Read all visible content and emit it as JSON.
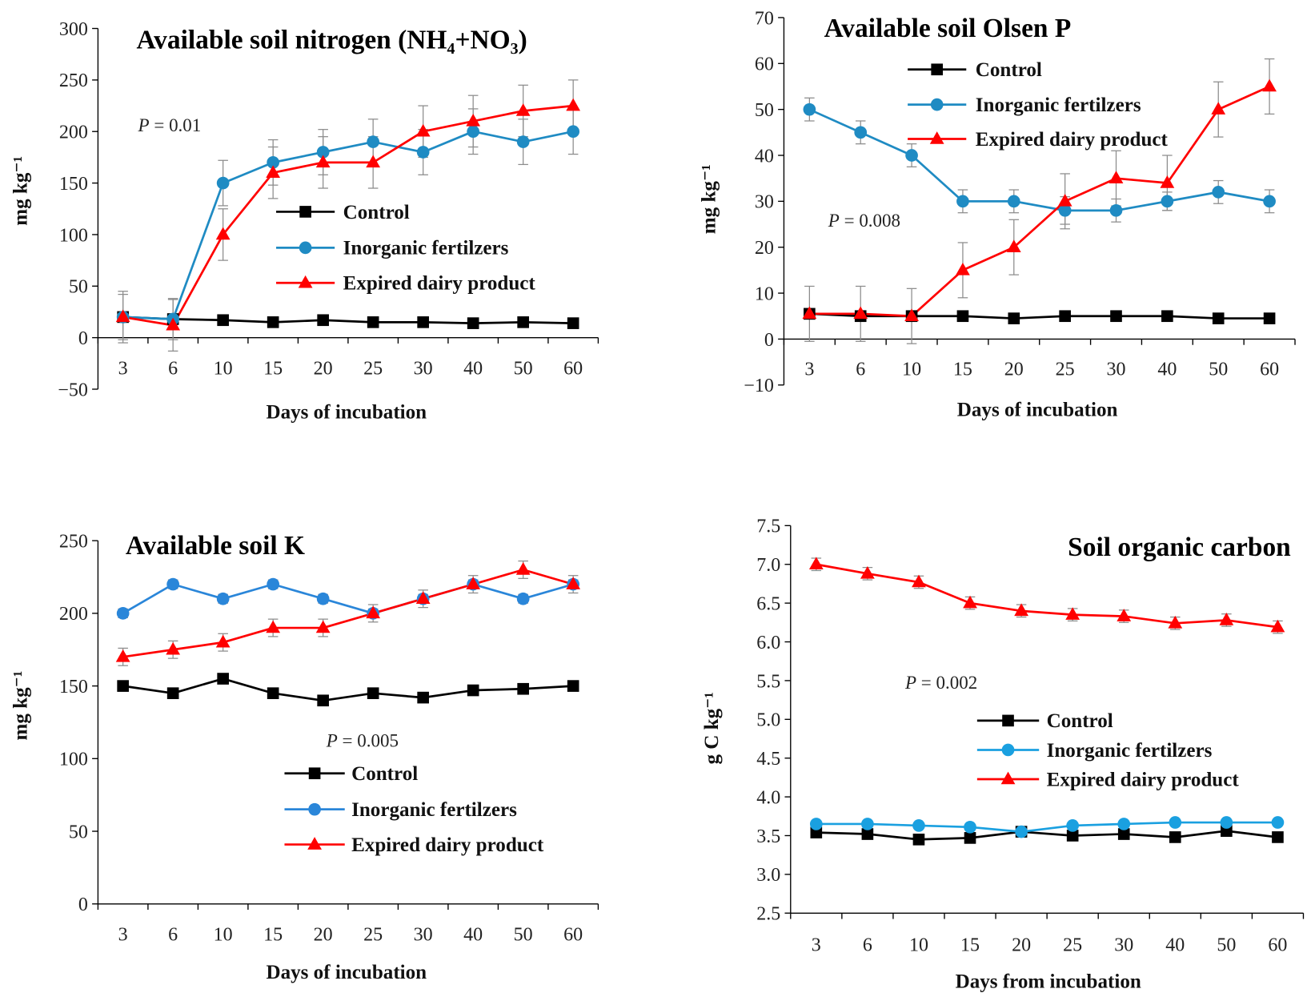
{
  "chart_data": [
    {
      "type": "line",
      "title": "Available soil nitrogen (NH₄+NO₃)",
      "xlabel": "Days of incubation",
      "ylabel": "mg kg⁻¹",
      "categories": [
        "3",
        "6",
        "10",
        "15",
        "20",
        "25",
        "30",
        "40",
        "50",
        "60"
      ],
      "ylim": [
        -50,
        300
      ],
      "yticks": [
        -50,
        0,
        50,
        100,
        150,
        200,
        250,
        300
      ],
      "ytick_labels": [
        "−50",
        "0",
        "50",
        "100",
        "150",
        "200",
        "250",
        "300"
      ],
      "annotation": {
        "symbol": "P",
        "text": " = 0.01"
      },
      "legend": {
        "position": "center-right"
      },
      "series": [
        {
          "name": "Control",
          "color": "#000000",
          "marker": "square",
          "values": [
            20,
            18,
            17,
            15,
            17,
            15,
            15,
            14,
            15,
            14
          ],
          "errors": [
            0,
            0,
            0,
            0,
            0,
            0,
            0,
            0,
            0,
            0
          ]
        },
        {
          "name": "Inorganic fertilzers",
          "color": "#1f8bc3",
          "marker": "circle",
          "values": [
            20,
            18,
            150,
            170,
            180,
            190,
            180,
            200,
            190,
            200
          ],
          "errors": [
            22,
            20,
            22,
            22,
            22,
            22,
            22,
            22,
            22,
            22
          ]
        },
        {
          "name": "Expired dairy product",
          "color": "#ff0000",
          "marker": "triangle",
          "values": [
            20,
            12,
            100,
            160,
            170,
            170,
            200,
            210,
            220,
            225
          ],
          "errors": [
            25,
            25,
            25,
            25,
            25,
            25,
            25,
            25,
            25,
            25
          ]
        }
      ]
    },
    {
      "type": "line",
      "title": "Available soil Olsen P",
      "xlabel": "Days of incubation",
      "ylabel": "mg kg⁻¹",
      "categories": [
        "3",
        "6",
        "10",
        "15",
        "20",
        "25",
        "30",
        "40",
        "50",
        "60"
      ],
      "ylim": [
        -10,
        70
      ],
      "yticks": [
        -10,
        0,
        10,
        20,
        30,
        40,
        50,
        60,
        70
      ],
      "ytick_labels": [
        "−10",
        "0",
        "10",
        "20",
        "30",
        "40",
        "50",
        "60",
        "70"
      ],
      "annotation": {
        "symbol": "P",
        "text": " = 0.008"
      },
      "legend": {
        "position": "top-center"
      },
      "series": [
        {
          "name": "Control",
          "color": "#000000",
          "marker": "square",
          "values": [
            5.5,
            5,
            5,
            5,
            4.5,
            5,
            5,
            5,
            4.5,
            4.5
          ],
          "errors": [
            0,
            0,
            0,
            0,
            0,
            0,
            0,
            0,
            0,
            0
          ]
        },
        {
          "name": "Inorganic fertilzers",
          "color": "#1f8bc3",
          "marker": "circle",
          "values": [
            50,
            45,
            40,
            30,
            30,
            28,
            28,
            30,
            32,
            30
          ],
          "errors": [
            2.5,
            2.5,
            2.5,
            2.5,
            2.5,
            3,
            2.5,
            2,
            2.5,
            2.5
          ]
        },
        {
          "name": "Expired dairy product",
          "color": "#ff0000",
          "marker": "triangle",
          "values": [
            5.5,
            5.5,
            5,
            15,
            20,
            30,
            35,
            34,
            50,
            55
          ],
          "errors": [
            6,
            6,
            6,
            6,
            6,
            6,
            6,
            6,
            6,
            6
          ]
        }
      ]
    },
    {
      "type": "line",
      "title": "Available soil K",
      "xlabel": "Days of incubation",
      "ylabel": "mg kg⁻¹",
      "categories": [
        "3",
        "6",
        "10",
        "15",
        "20",
        "25",
        "30",
        "40",
        "50",
        "60"
      ],
      "ylim": [
        0,
        250
      ],
      "yticks": [
        0,
        50,
        100,
        150,
        200,
        250
      ],
      "ytick_labels": [
        "0",
        "50",
        "100",
        "150",
        "200",
        "250"
      ],
      "annotation": {
        "symbol": "P",
        "text": " = 0.005"
      },
      "legend": {
        "position": "bottom-center"
      },
      "series": [
        {
          "name": "Control",
          "color": "#000000",
          "marker": "square",
          "values": [
            150,
            145,
            155,
            145,
            140,
            145,
            142,
            147,
            148,
            150
          ],
          "errors": [
            2,
            2,
            2,
            2,
            2,
            2,
            2,
            2,
            2,
            2
          ]
        },
        {
          "name": "Inorganic fertilzers",
          "color": "#2a86d9",
          "marker": "circle",
          "values": [
            200,
            220,
            210,
            220,
            210,
            200,
            210,
            220,
            210,
            220
          ],
          "errors": [
            3,
            3,
            3,
            3,
            3,
            3,
            3,
            3,
            3,
            3
          ]
        },
        {
          "name": "Expired dairy product",
          "color": "#ff0000",
          "marker": "triangle",
          "values": [
            170,
            175,
            180,
            190,
            190,
            200,
            210,
            220,
            230,
            220
          ],
          "errors": [
            6,
            6,
            6,
            6,
            6,
            6,
            6,
            6,
            6,
            6
          ]
        }
      ]
    },
    {
      "type": "line",
      "title": "Soil organic carbon",
      "xlabel": "Days from incubation",
      "ylabel": "g C kg⁻¹",
      "categories": [
        "3",
        "6",
        "10",
        "15",
        "20",
        "25",
        "30",
        "40",
        "50",
        "60"
      ],
      "ylim": [
        2.5,
        7.5
      ],
      "yticks": [
        2.5,
        3.0,
        3.5,
        4.0,
        4.5,
        5.0,
        5.5,
        6.0,
        6.5,
        7.0,
        7.5
      ],
      "ytick_labels": [
        "2.5",
        "3.0",
        "3.5",
        "4.0",
        "4.5",
        "5.0",
        "5.5",
        "6.0",
        "6.5",
        "7.0",
        "7.5"
      ],
      "annotation": {
        "symbol": "P",
        "text": " = 0.002"
      },
      "legend": {
        "position": "center"
      },
      "series": [
        {
          "name": "Control",
          "color": "#000000",
          "marker": "square",
          "values": [
            3.54,
            3.52,
            3.45,
            3.47,
            3.55,
            3.5,
            3.52,
            3.48,
            3.56,
            3.48
          ],
          "errors": [
            0.02,
            0.02,
            0.02,
            0.02,
            0.02,
            0.02,
            0.02,
            0.02,
            0.02,
            0.02
          ]
        },
        {
          "name": "Inorganic fertilzers",
          "color": "#1aa0e0",
          "marker": "circle",
          "values": [
            3.65,
            3.65,
            3.63,
            3.61,
            3.55,
            3.63,
            3.65,
            3.67,
            3.67,
            3.67
          ],
          "errors": [
            0.02,
            0.02,
            0.02,
            0.02,
            0.02,
            0.02,
            0.02,
            0.02,
            0.02,
            0.02
          ]
        },
        {
          "name": "Expired dairy product",
          "color": "#ff0000",
          "marker": "triangle",
          "values": [
            7.0,
            6.88,
            6.77,
            6.5,
            6.4,
            6.35,
            6.33,
            6.24,
            6.28,
            6.19
          ],
          "errors": [
            0.08,
            0.08,
            0.08,
            0.08,
            0.08,
            0.08,
            0.08,
            0.08,
            0.08,
            0.08
          ]
        }
      ]
    }
  ]
}
